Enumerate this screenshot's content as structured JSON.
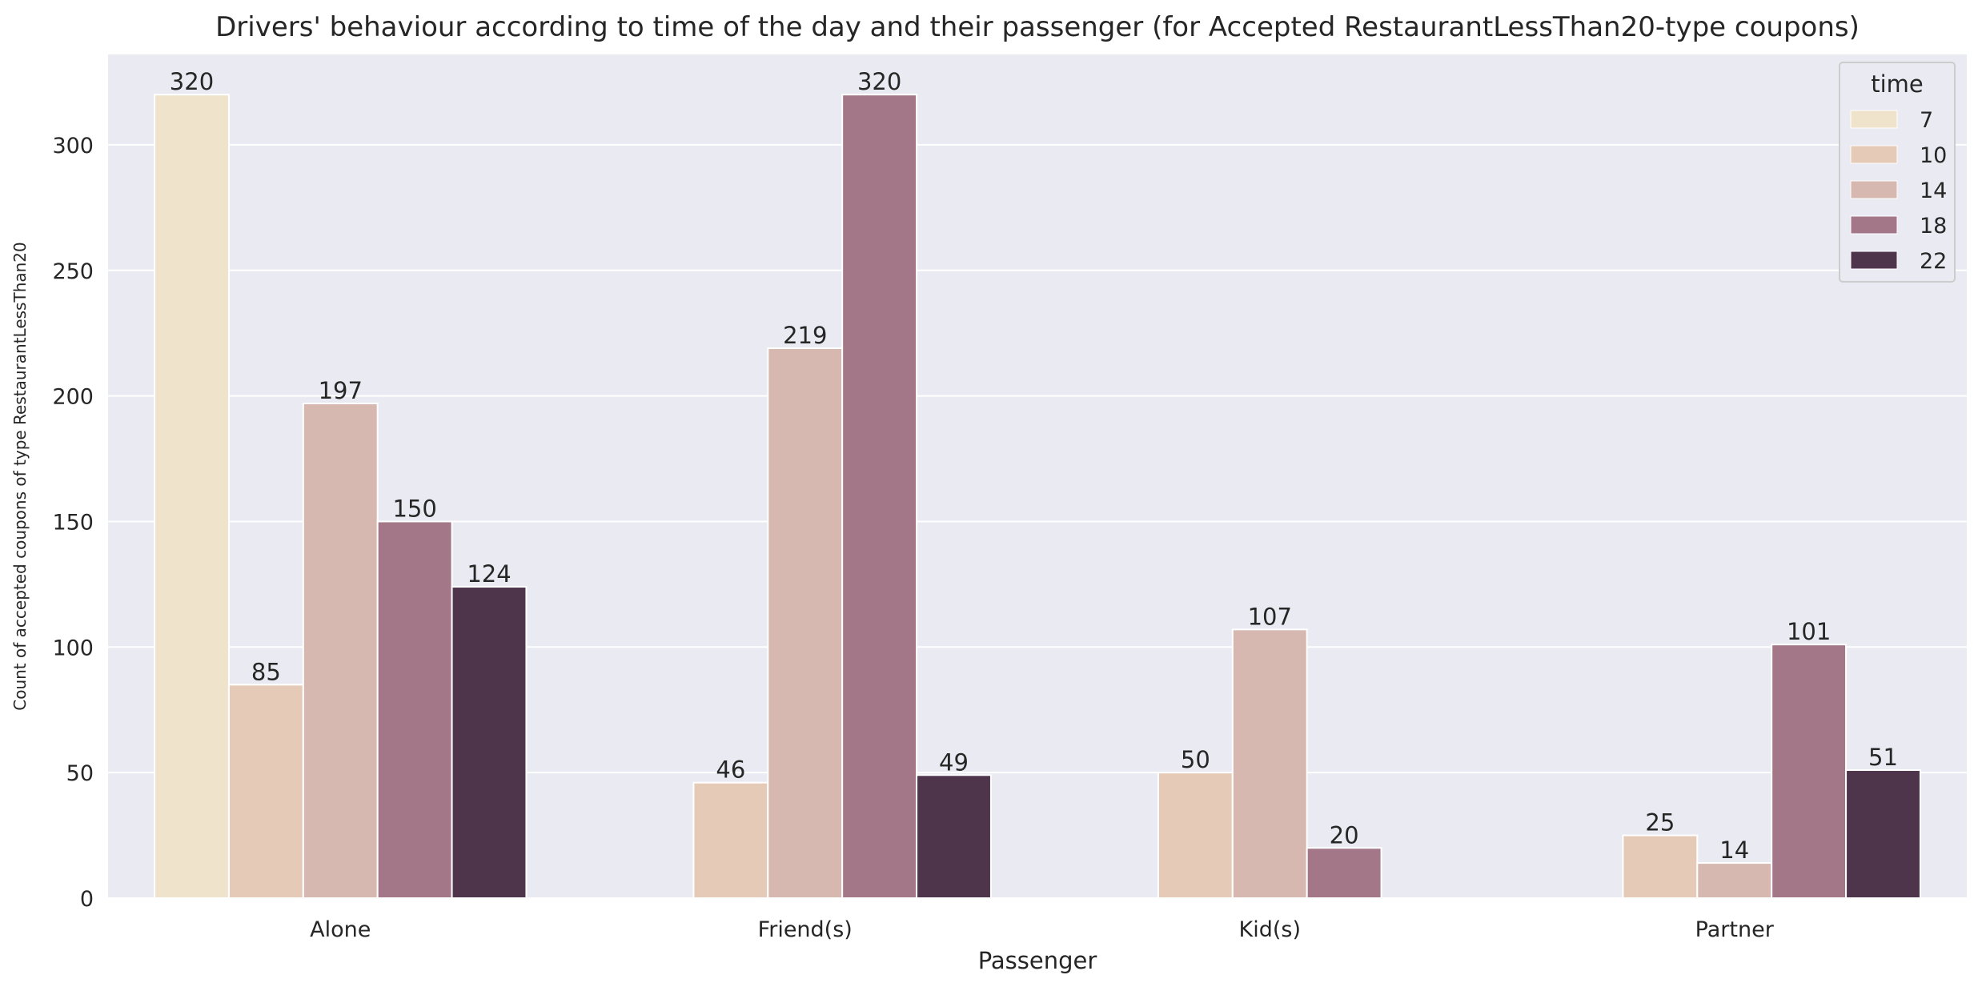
{
  "chart_data": {
    "type": "bar",
    "title": "Drivers' behaviour according to time of the day and their passenger (for Accepted RestaurantLessThan20-type coupons)",
    "xlabel": "Passenger",
    "ylabel": "Count of accepted coupons of type RestaurantLessThan20",
    "categories": [
      "Alone",
      "Friend(s)",
      "Kid(s)",
      "Partner"
    ],
    "ylim": [
      0,
      336
    ],
    "yticks": [
      0,
      50,
      100,
      150,
      200,
      250,
      300
    ],
    "grid": true,
    "legend": {
      "title": "time",
      "placement": "top-right"
    },
    "series": [
      {
        "name": "7",
        "color": "#efe3cc",
        "values": [
          320,
          null,
          null,
          null
        ]
      },
      {
        "name": "10",
        "color": "#e4cab7",
        "values": [
          85,
          46,
          50,
          25
        ]
      },
      {
        "name": "14",
        "color": "#d7b8b0",
        "values": [
          197,
          219,
          107,
          14
        ]
      },
      {
        "name": "18",
        "color": "#a37788",
        "values": [
          150,
          320,
          20,
          101
        ]
      },
      {
        "name": "22",
        "color": "#4f354c",
        "values": [
          124,
          49,
          null,
          51
        ]
      }
    ],
    "colors": {
      "plot_background": "#eaeaf2",
      "grid": "#ffffff",
      "bar_edge": "#ffffff"
    }
  }
}
